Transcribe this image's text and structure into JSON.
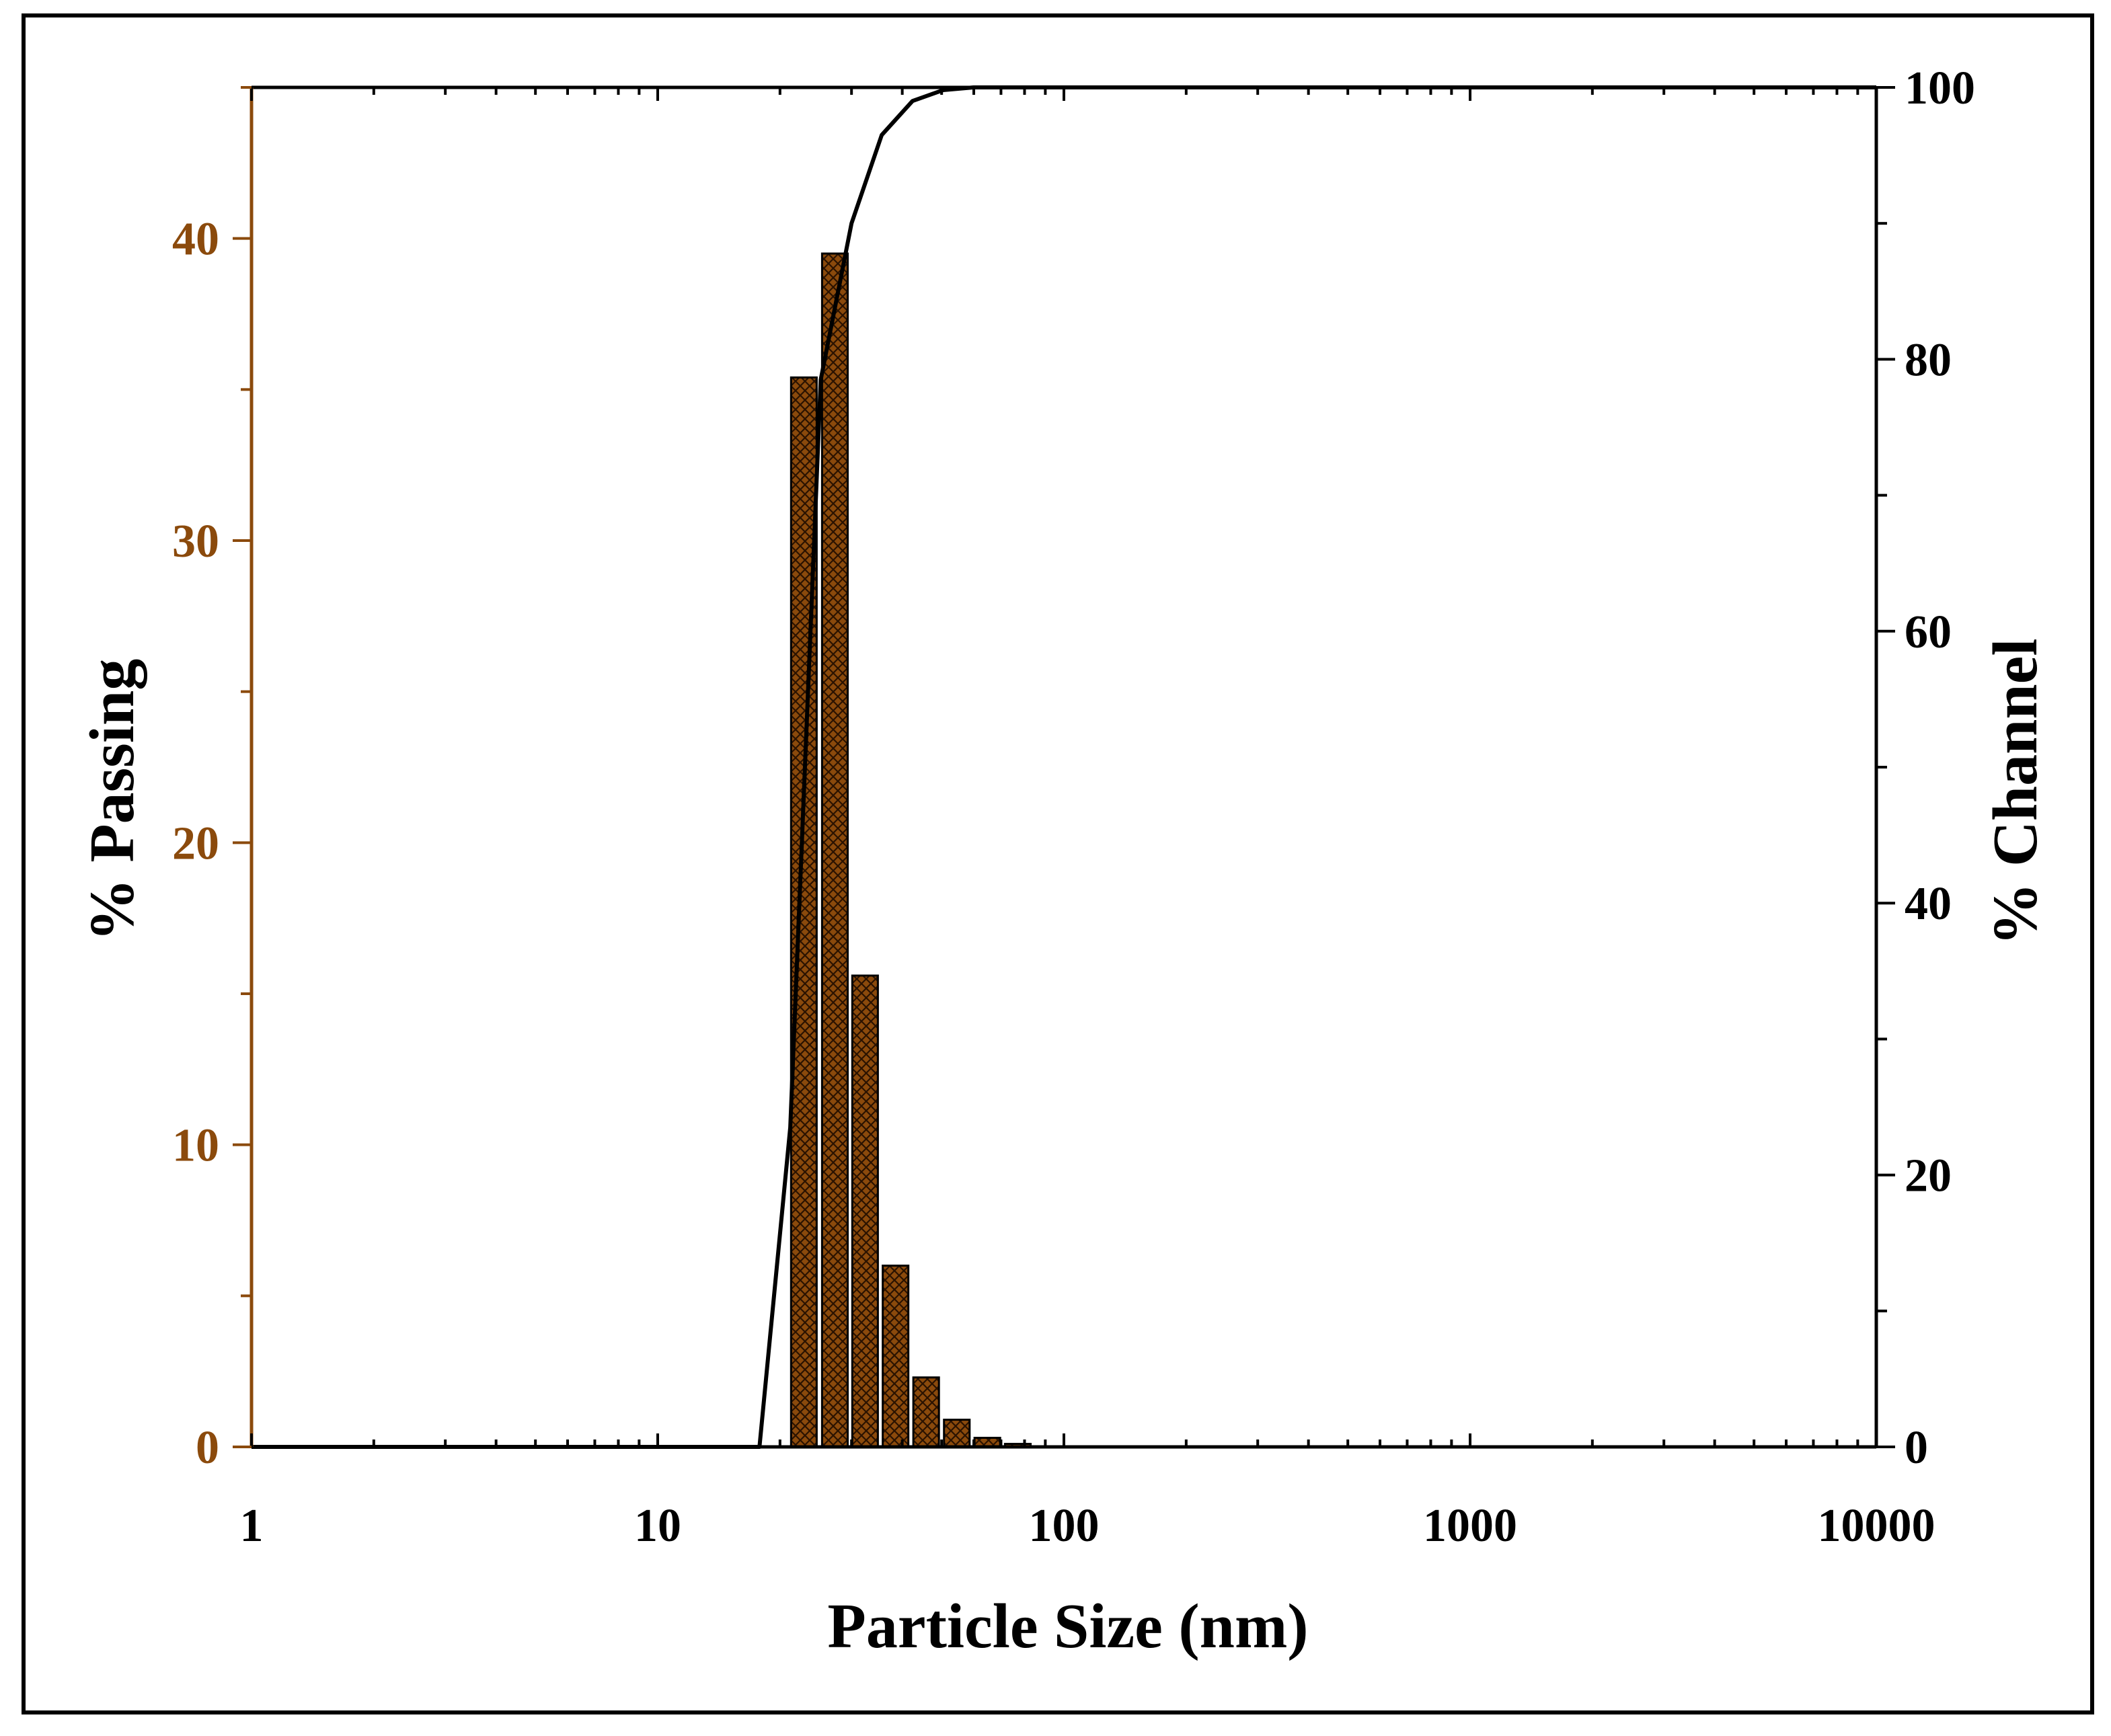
{
  "chart_data": {
    "type": "bar",
    "x_scale": "log",
    "xlabel": "Particle Size (nm)",
    "ylabel_left": "% Passing",
    "ylabel_right": "% Channel",
    "xlim": [
      1,
      10000
    ],
    "ylim_left": [
      0,
      45
    ],
    "ylim_right": [
      0,
      100
    ],
    "x_ticks": [
      "1",
      "10",
      "100",
      "1000",
      "10000"
    ],
    "y_left_ticks": [
      "0",
      "10",
      "20",
      "30",
      "40"
    ],
    "y_right_ticks": [
      "0",
      "20",
      "40",
      "60",
      "80",
      "100"
    ],
    "left_axis_color": "#8B4A0C",
    "bar_fill": "#8B4A0C",
    "bars": [
      {
        "x": 22.9,
        "y": 35.4
      },
      {
        "x": 27.3,
        "y": 39.5
      },
      {
        "x": 32.4,
        "y": 15.6
      },
      {
        "x": 38.5,
        "y": 6.0
      },
      {
        "x": 45.8,
        "y": 2.3
      },
      {
        "x": 54.5,
        "y": 0.9
      },
      {
        "x": 64.8,
        "y": 0.3
      },
      {
        "x": 77.0,
        "y": 0.1
      }
    ],
    "cumulative_line": {
      "x": [
        1,
        17.8,
        21.2,
        25.2,
        30.0,
        35.6,
        42.4,
        50.4,
        59.9,
        71.2,
        84.7,
        100,
        10000
      ],
      "y": [
        0,
        0,
        23.5,
        78.5,
        90.0,
        96.5,
        99.0,
        99.8,
        100,
        100,
        100,
        100,
        100
      ]
    }
  }
}
